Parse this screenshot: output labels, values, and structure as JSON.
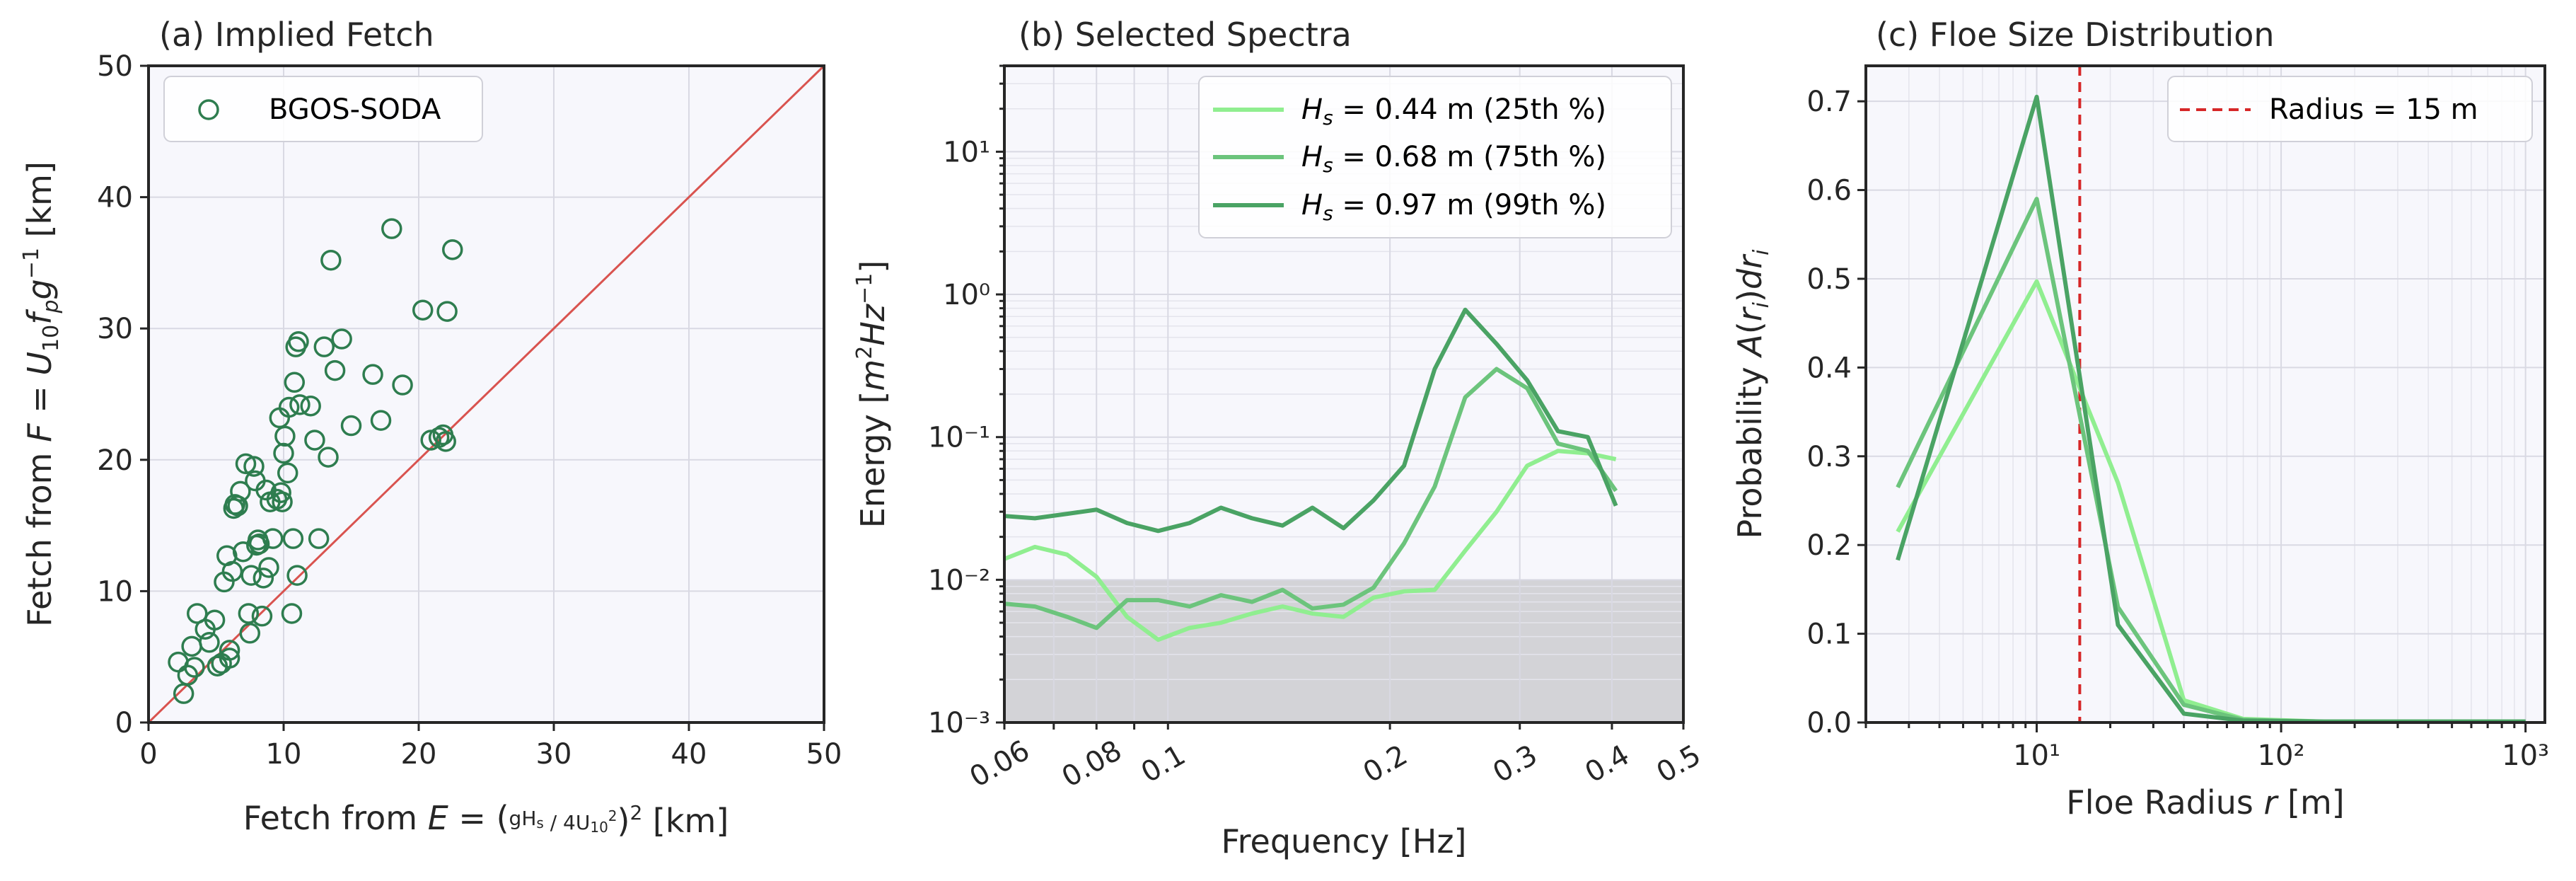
{
  "chart_data": [
    {
      "panel": "a",
      "type": "scatter",
      "title": "(a)  Implied Fetch",
      "xlabel": "Fetch from E = (gHs / 4U10²)² [km]",
      "ylabel": "Fetch from F = U10 fp g⁻¹ [km]",
      "xlim": [
        0,
        50
      ],
      "ylim": [
        0,
        50
      ],
      "xticks": [
        0,
        10,
        20,
        30,
        40,
        50
      ],
      "yticks": [
        0,
        10,
        20,
        30,
        40,
        50
      ],
      "grid": true,
      "legend": "top-left",
      "reference_line": {
        "from": [
          0,
          0
        ],
        "to": [
          50,
          50
        ],
        "color": "#d9534f"
      },
      "series": [
        {
          "name": "BGOS-SODA",
          "color": "#2e7d4f",
          "marker": "open-circle",
          "points": [
            [
              2.2,
              4.6
            ],
            [
              2.6,
              2.2
            ],
            [
              2.9,
              3.6
            ],
            [
              3.2,
              5.8
            ],
            [
              3.4,
              4.2
            ],
            [
              3.6,
              8.3
            ],
            [
              4.2,
              7.1
            ],
            [
              4.5,
              6.1
            ],
            [
              4.9,
              7.8
            ],
            [
              5.1,
              4.3
            ],
            [
              5.4,
              4.5
            ],
            [
              5.6,
              10.7
            ],
            [
              5.8,
              12.7
            ],
            [
              6.0,
              5.5
            ],
            [
              6.0,
              4.9
            ],
            [
              6.2,
              11.5
            ],
            [
              6.3,
              16.3
            ],
            [
              6.4,
              16.6
            ],
            [
              6.6,
              16.5
            ],
            [
              6.8,
              17.6
            ],
            [
              7.0,
              13.0
            ],
            [
              7.2,
              19.7
            ],
            [
              7.4,
              8.3
            ],
            [
              7.5,
              6.8
            ],
            [
              7.6,
              11.2
            ],
            [
              7.8,
              19.5
            ],
            [
              7.9,
              18.4
            ],
            [
              8.0,
              13.5
            ],
            [
              8.1,
              13.9
            ],
            [
              8.2,
              13.6
            ],
            [
              8.4,
              8.1
            ],
            [
              8.5,
              11.0
            ],
            [
              8.7,
              17.7
            ],
            [
              8.9,
              11.8
            ],
            [
              9.0,
              16.8
            ],
            [
              9.2,
              14.0
            ],
            [
              9.5,
              17.0
            ],
            [
              9.7,
              23.2
            ],
            [
              9.8,
              17.5
            ],
            [
              9.9,
              16.8
            ],
            [
              10.0,
              20.5
            ],
            [
              10.1,
              21.8
            ],
            [
              10.3,
              19.0
            ],
            [
              10.4,
              24.0
            ],
            [
              10.6,
              8.3
            ],
            [
              10.7,
              14.0
            ],
            [
              10.8,
              25.9
            ],
            [
              10.9,
              28.6
            ],
            [
              11.0,
              11.2
            ],
            [
              11.1,
              29.0
            ],
            [
              11.2,
              24.2
            ],
            [
              12.0,
              24.1
            ],
            [
              12.3,
              21.5
            ],
            [
              12.6,
              14.0
            ],
            [
              13.0,
              28.6
            ],
            [
              13.3,
              20.2
            ],
            [
              13.5,
              35.2
            ],
            [
              13.8,
              26.8
            ],
            [
              14.3,
              29.2
            ],
            [
              15.0,
              22.6
            ],
            [
              16.6,
              26.5
            ],
            [
              17.2,
              23.0
            ],
            [
              18.0,
              37.6
            ],
            [
              18.8,
              25.7
            ],
            [
              20.3,
              31.4
            ],
            [
              20.9,
              21.5
            ],
            [
              21.5,
              21.7
            ],
            [
              21.8,
              21.9
            ],
            [
              22.0,
              21.4
            ],
            [
              22.1,
              31.3
            ],
            [
              22.5,
              36.0
            ]
          ]
        }
      ]
    },
    {
      "panel": "b",
      "type": "line",
      "title": "(b)  Selected Spectra",
      "xlabel": "Frequency [Hz]",
      "ylabel": "Energy [m²Hz⁻¹]",
      "xscale": "log",
      "yscale": "log",
      "xlim": [
        0.06,
        0.5
      ],
      "ylim": [
        0.001,
        40
      ],
      "xtick_labels": [
        "0.06",
        "0.08",
        "0.1",
        "0.2",
        "0.3",
        "0.4",
        "0.5"
      ],
      "ytick_labels": [
        "10⁻³",
        "10⁻²",
        "10⁻¹",
        "10⁰",
        "10¹"
      ],
      "shaded_region": {
        "y": [
          0.001,
          0.01
        ],
        "color": "#d3d3d7"
      },
      "grid": true,
      "legend": "top-right",
      "x": [
        0.06,
        0.066,
        0.073,
        0.08,
        0.088,
        0.097,
        0.107,
        0.118,
        0.13,
        0.143,
        0.157,
        0.173,
        0.19,
        0.209,
        0.23,
        0.253,
        0.279,
        0.307,
        0.338,
        0.371,
        0.405
      ],
      "series": [
        {
          "name": "Hs = 0.44 m (25th %)",
          "hs_label": "0.44 m (25th %)",
          "color": "#90ee90",
          "values": [
            0.014,
            0.017,
            0.015,
            0.0105,
            0.0055,
            0.0038,
            0.0046,
            0.005,
            0.0058,
            0.0065,
            0.0058,
            0.0055,
            0.0075,
            0.0083,
            0.0085,
            0.016,
            0.03,
            0.063,
            0.08,
            0.077,
            0.07
          ]
        },
        {
          "name": "Hs = 0.68 m (75th %)",
          "hs_label": "0.68 m (75th %)",
          "color": "#6cc47c",
          "values": [
            0.0068,
            0.0065,
            0.0055,
            0.0046,
            0.0072,
            0.0072,
            0.0065,
            0.0078,
            0.007,
            0.0085,
            0.0063,
            0.0067,
            0.0088,
            0.018,
            0.045,
            0.19,
            0.3,
            0.22,
            0.09,
            0.08,
            0.042
          ]
        },
        {
          "name": "Hs = 0.97 m (99th %)",
          "hs_label": "0.97 m (99th %)",
          "color": "#4aa364",
          "values": [
            0.028,
            0.027,
            0.029,
            0.031,
            0.025,
            0.022,
            0.025,
            0.032,
            0.027,
            0.024,
            0.032,
            0.023,
            0.036,
            0.063,
            0.3,
            0.78,
            0.45,
            0.25,
            0.11,
            0.1,
            0.033
          ]
        }
      ]
    },
    {
      "panel": "c",
      "type": "line",
      "title": "(c)  Floe Size Distribution",
      "xlabel": "Floe Radius r [m]",
      "ylabel": "Probability A(rᵢ)drᵢ",
      "xscale": "log",
      "xlim": [
        2,
        1200
      ],
      "ylim": [
        0,
        0.74
      ],
      "xtick_labels": [
        "10¹",
        "10²",
        "10³"
      ],
      "yticks": [
        0.0,
        0.1,
        0.2,
        0.3,
        0.4,
        0.5,
        0.6,
        0.7
      ],
      "ytick_labels": [
        "0.0",
        "0.1",
        "0.2",
        "0.3",
        "0.4",
        "0.5",
        "0.6",
        "0.7"
      ],
      "vertical_line": {
        "x": 15,
        "label": "Radius = 15 m",
        "color": "#d62728",
        "style": "dashed"
      },
      "grid": true,
      "legend": "top-right",
      "x": [
        2.7,
        10,
        21.5,
        40,
        70,
        150,
        300,
        600,
        1000
      ],
      "series": [
        {
          "name": "Hs = 0.44 m",
          "color": "#90ee90",
          "values": [
            0.215,
            0.497,
            0.27,
            0.025,
            0.004,
            0.001,
            0.001,
            0.001,
            0.001
          ]
        },
        {
          "name": "Hs = 0.68 m",
          "color": "#6cc47c",
          "values": [
            0.265,
            0.59,
            0.13,
            0.02,
            0.003,
            0.001,
            0.001,
            0.001,
            0.001
          ]
        },
        {
          "name": "Hs = 0.97 m",
          "color": "#4aa364",
          "values": [
            0.183,
            0.705,
            0.11,
            0.01,
            0.002,
            0.001,
            0.001,
            0.001,
            0.001
          ]
        }
      ]
    }
  ]
}
